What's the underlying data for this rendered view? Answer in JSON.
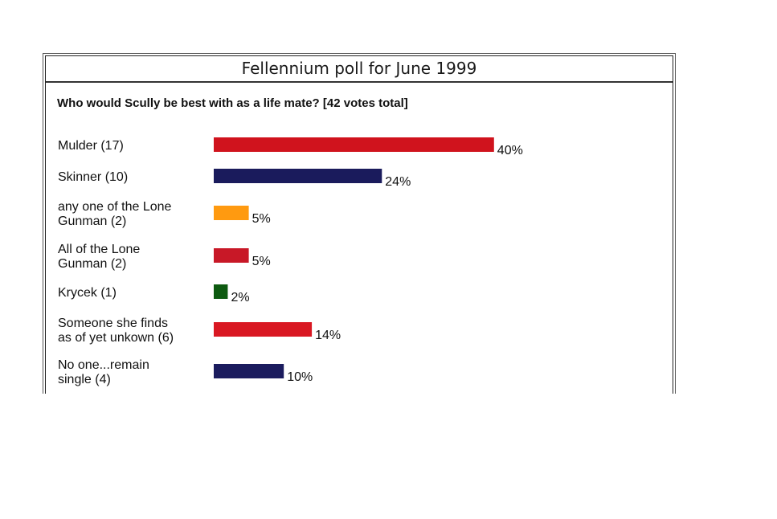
{
  "poll": {
    "title": "Fellennium poll for June 1999",
    "question": "Who would Scully be best with as a life mate? [42 votes total]"
  },
  "chart_data": {
    "type": "bar",
    "orientation": "horizontal",
    "title": "Fellennium poll for June 1999",
    "subtitle": "Who would Scully be best with as a life mate? [42 votes total]",
    "unit": "%",
    "xlim": [
      0,
      40
    ],
    "grid": false,
    "legend": "none",
    "categories": [
      "Mulder (17)",
      "Skinner (10)",
      "any one of the Lone Gunman (2)",
      "All of the Lone Gunman (2)",
      "Krycek (1)",
      "Someone she finds as of yet unkown (6)",
      "No one...remain single (4)"
    ],
    "label_lines": [
      [
        "Mulder (17)"
      ],
      [
        "Skinner (10)"
      ],
      [
        "any one of the Lone",
        "Gunman (2)"
      ],
      [
        "All of the Lone",
        "Gunman (2)"
      ],
      [
        "Krycek (1)"
      ],
      [
        "Someone she finds",
        "as of yet unkown (6)"
      ],
      [
        "No one...remain",
        "single (4)"
      ]
    ],
    "votes": [
      17,
      10,
      2,
      2,
      1,
      6,
      4
    ],
    "values": [
      40,
      24,
      5,
      5,
      2,
      14,
      10
    ],
    "value_labels": [
      "40%",
      "24%",
      "5%",
      "5%",
      "2%",
      "14%",
      "10%"
    ],
    "colors": [
      "#d0131d",
      "#1a1b5c",
      "#ff9a10",
      "#c81827",
      "#0d5a10",
      "#d91822",
      "#1b1c5e"
    ]
  }
}
